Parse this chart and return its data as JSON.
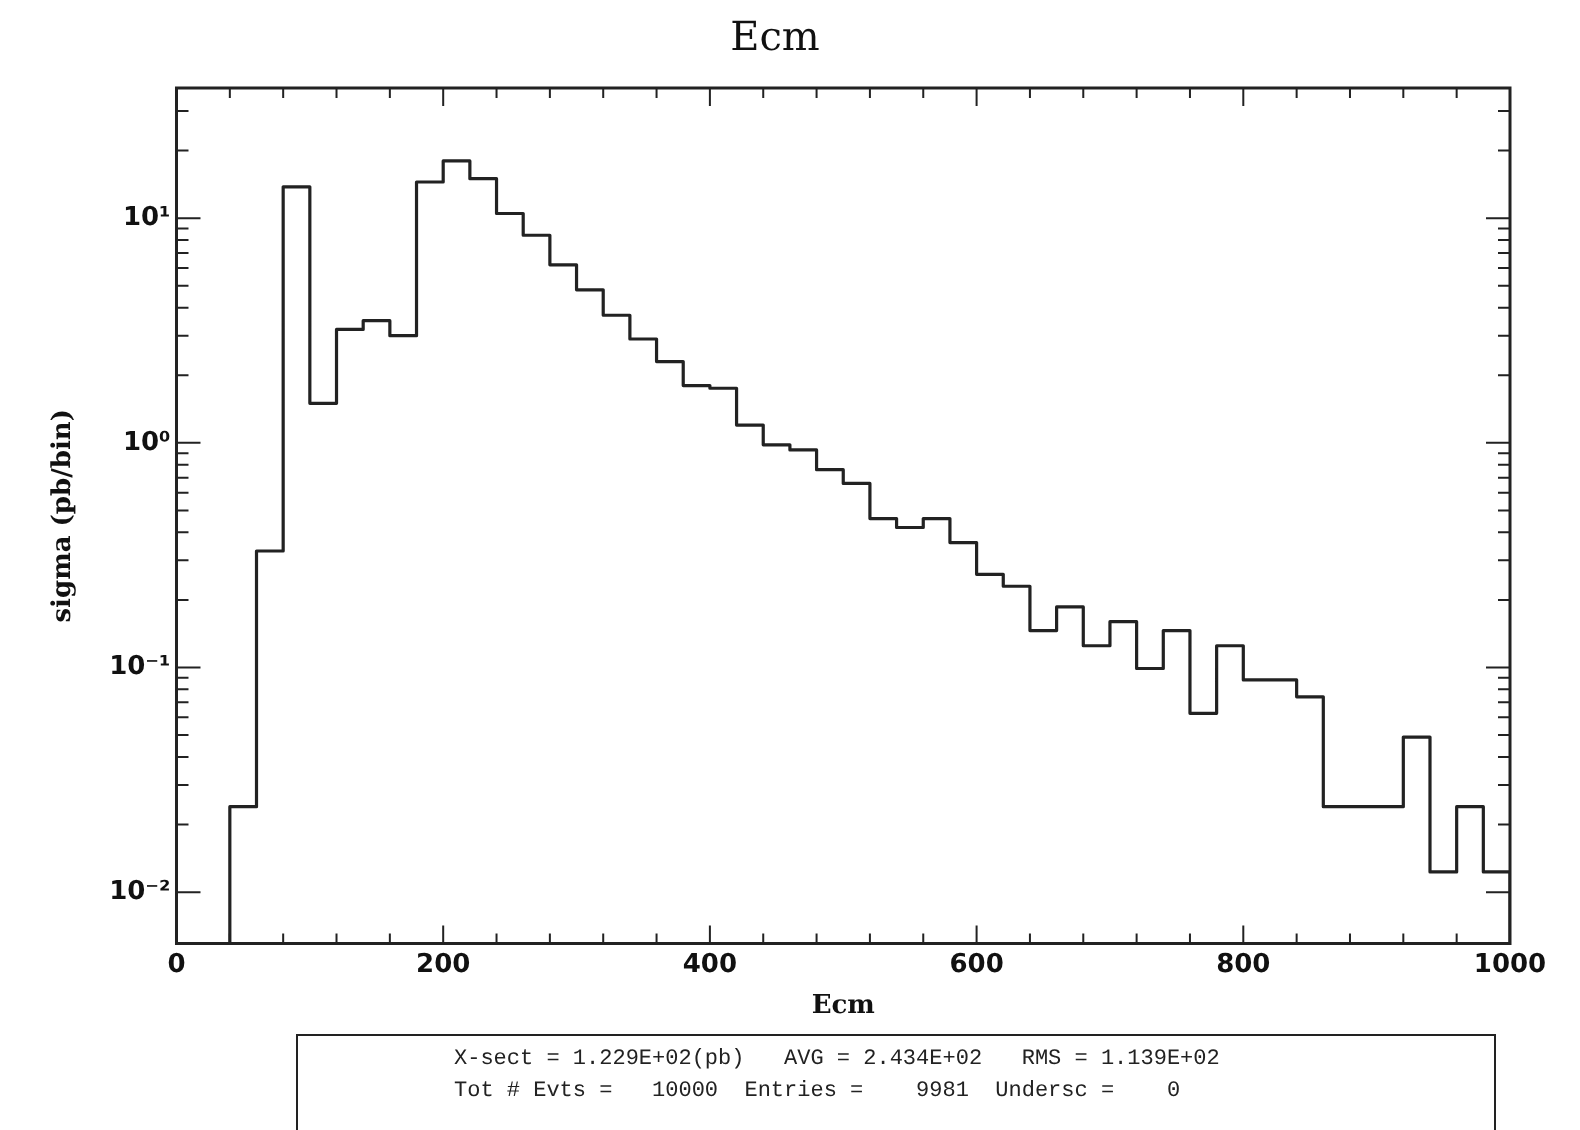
{
  "chart_data": {
    "type": "histogram",
    "title": "Ecm",
    "xlabel": "Ecm",
    "ylabel": "sigma (pb/bin)",
    "bins": [
      40,
      60,
      80,
      100,
      120,
      140,
      160,
      180,
      200,
      220,
      240,
      260,
      280,
      300,
      320,
      340,
      360,
      380,
      400,
      420,
      440,
      460,
      480,
      500,
      520,
      540,
      560,
      580,
      600,
      620,
      640,
      660,
      680,
      700,
      720,
      740,
      760,
      780,
      800,
      820,
      840,
      860,
      880,
      900,
      920,
      940,
      960,
      980,
      1000
    ],
    "values": [
      0.024,
      0.33,
      13.8,
      1.5,
      3.2,
      3.5,
      3.0,
      14.5,
      18,
      15,
      10.5,
      8.4,
      6.2,
      4.8,
      3.7,
      2.9,
      2.3,
      1.8,
      1.75,
      1.2,
      0.98,
      0.93,
      0.76,
      0.66,
      0.46,
      0.42,
      0.46,
      0.36,
      0.26,
      0.23,
      0.146,
      0.186,
      0.125,
      0.16,
      0.099,
      0.146,
      0.0625,
      0.125,
      0.088,
      0.088,
      0.074,
      0.024,
      0.024,
      0.024,
      0.049,
      0.0123,
      0.024,
      0.0123
    ],
    "color": "#222222",
    "log": "y",
    "xlim": [
      0,
      1000
    ],
    "xticks": [
      0,
      {
        "value": 40,
        "label": null
      },
      {
        "value": 80,
        "label": null
      },
      {
        "value": 120,
        "label": null
      },
      {
        "value": 160,
        "label": null
      },
      200,
      {
        "value": 240,
        "label": null
      },
      {
        "value": 280,
        "label": null
      },
      {
        "value": 320,
        "label": null
      },
      {
        "value": 360,
        "label": null
      },
      400,
      {
        "value": 440,
        "label": null
      },
      {
        "value": 480,
        "label": null
      },
      {
        "value": 520,
        "label": null
      },
      {
        "value": 560,
        "label": null
      },
      600,
      {
        "value": 640,
        "label": null
      },
      {
        "value": 680,
        "label": null
      },
      {
        "value": 720,
        "label": null
      },
      {
        "value": 760,
        "label": null
      },
      800,
      {
        "value": 840,
        "label": null
      },
      {
        "value": 880,
        "label": null
      },
      {
        "value": 920,
        "label": null
      },
      {
        "value": 960,
        "label": null
      },
      1000
    ],
    "ylim": [
      0.0059,
      38
    ],
    "yticks": [
      {
        "value": 0.01,
        "label": "10⁻²"
      },
      {
        "value": 0.02,
        "label": null
      },
      {
        "value": 0.03,
        "label": null
      },
      {
        "value": 0.04,
        "label": null
      },
      {
        "value": 0.05,
        "label": null
      },
      {
        "value": 0.06,
        "label": null
      },
      {
        "value": 0.07,
        "label": null
      },
      {
        "value": 0.08,
        "label": null
      },
      {
        "value": 0.09,
        "label": null
      },
      {
        "value": 0.1,
        "label": "10⁻¹"
      },
      {
        "value": 0.2,
        "label": null
      },
      {
        "value": 0.3,
        "label": null
      },
      {
        "value": 0.4,
        "label": null
      },
      {
        "value": 0.5,
        "label": null
      },
      {
        "value": 0.6,
        "label": null
      },
      {
        "value": 0.7,
        "label": null
      },
      {
        "value": 0.8,
        "label": null
      },
      {
        "value": 0.9,
        "label": null
      },
      {
        "value": 1,
        "label": "10⁰"
      },
      {
        "value": 2,
        "label": null
      },
      {
        "value": 3,
        "label": null
      },
      {
        "value": 4,
        "label": null
      },
      {
        "value": 5,
        "label": null
      },
      {
        "value": 6,
        "label": null
      },
      {
        "value": 7,
        "label": null
      },
      {
        "value": 8,
        "label": null
      },
      {
        "value": 9,
        "label": null
      },
      {
        "value": 10,
        "label": "10¹"
      },
      {
        "value": 20,
        "label": null
      },
      {
        "value": 30,
        "label": null
      }
    ],
    "grid": false,
    "legend": false,
    "annotations": [
      "X-sect = 1.229E+02(pb)   AVG = 2.434E+02   RMS = 1.139E+02",
      "Tot # Evts =   10000  Entries =    9981  Undersc =    0"
    ]
  }
}
